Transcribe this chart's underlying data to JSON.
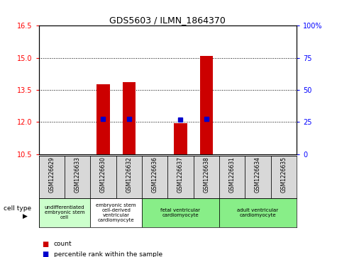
{
  "title": "GDS5603 / ILMN_1864370",
  "samples": [
    "GSM1226629",
    "GSM1226633",
    "GSM1226630",
    "GSM1226632",
    "GSM1226636",
    "GSM1226637",
    "GSM1226638",
    "GSM1226631",
    "GSM1226634",
    "GSM1226635"
  ],
  "counts": [
    null,
    null,
    13.75,
    13.85,
    null,
    11.95,
    15.1,
    null,
    null,
    null
  ],
  "percentiles": [
    null,
    null,
    12.15,
    12.15,
    null,
    12.12,
    12.15,
    null,
    null,
    null
  ],
  "ylim": [
    10.5,
    16.5
  ],
  "yticks_left": [
    10.5,
    12.0,
    13.5,
    15.0,
    16.5
  ],
  "yticks_right": [
    0,
    25,
    50,
    75,
    100
  ],
  "bar_color": "#cc0000",
  "dot_color": "#0000cc",
  "cell_types": [
    {
      "label": "undifferentiated\nembryonic stem\ncell",
      "start": 0,
      "end": 2,
      "color": "#ccffcc"
    },
    {
      "label": "embryonic stem\ncell-derived\nventricular\ncardiomyocyte",
      "start": 2,
      "end": 4,
      "color": "#ffffff"
    },
    {
      "label": "fetal ventricular\ncardiomyocyte",
      "start": 4,
      "end": 7,
      "color": "#88ee88"
    },
    {
      "label": "adult ventricular\ncardiomyocyte",
      "start": 7,
      "end": 10,
      "color": "#88ee88"
    }
  ],
  "legend_count_label": "count",
  "legend_pct_label": "percentile rank within the sample",
  "cell_type_label": "cell type",
  "bar_width": 0.5,
  "dot_marker_size": 4
}
